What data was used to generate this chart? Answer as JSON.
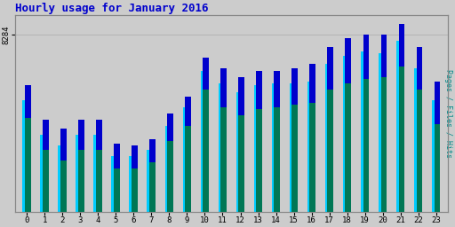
{
  "title": "Hourly usage for January 2016",
  "ylabel_right": "Pages / Files / Hits",
  "hours": [
    0,
    1,
    2,
    3,
    4,
    5,
    6,
    7,
    8,
    9,
    10,
    11,
    12,
    13,
    14,
    15,
    16,
    17,
    18,
    19,
    20,
    21,
    22,
    23
  ],
  "hits": [
    5900,
    4300,
    3900,
    4300,
    4300,
    3200,
    3100,
    3400,
    4600,
    5400,
    7200,
    6700,
    6300,
    6600,
    6600,
    6700,
    6900,
    7700,
    8100,
    8300,
    8300,
    8800,
    7700,
    6100
  ],
  "files": [
    5200,
    3600,
    3100,
    3600,
    3600,
    2600,
    2600,
    2900,
    4000,
    4900,
    6600,
    6000,
    5600,
    5900,
    6000,
    6000,
    6100,
    6900,
    7300,
    7500,
    7400,
    8000,
    6700,
    5200
  ],
  "pages": [
    4400,
    2900,
    2400,
    2900,
    2900,
    2000,
    2000,
    2300,
    3300,
    4000,
    5700,
    4900,
    4500,
    4800,
    4900,
    5000,
    5100,
    5700,
    6000,
    6200,
    6300,
    6800,
    5700,
    4100
  ],
  "hits_color": "#0000cc",
  "files_color": "#00ccff",
  "pages_color": "#007755",
  "bg_color": "#cccccc",
  "plot_bg": "#cccccc",
  "border_color": "#888888",
  "title_color": "#0000cc",
  "ylabel_color": "#008888",
  "ytick_label": "8284",
  "bar_width": 0.38,
  "ylim": [
    0,
    9200
  ]
}
